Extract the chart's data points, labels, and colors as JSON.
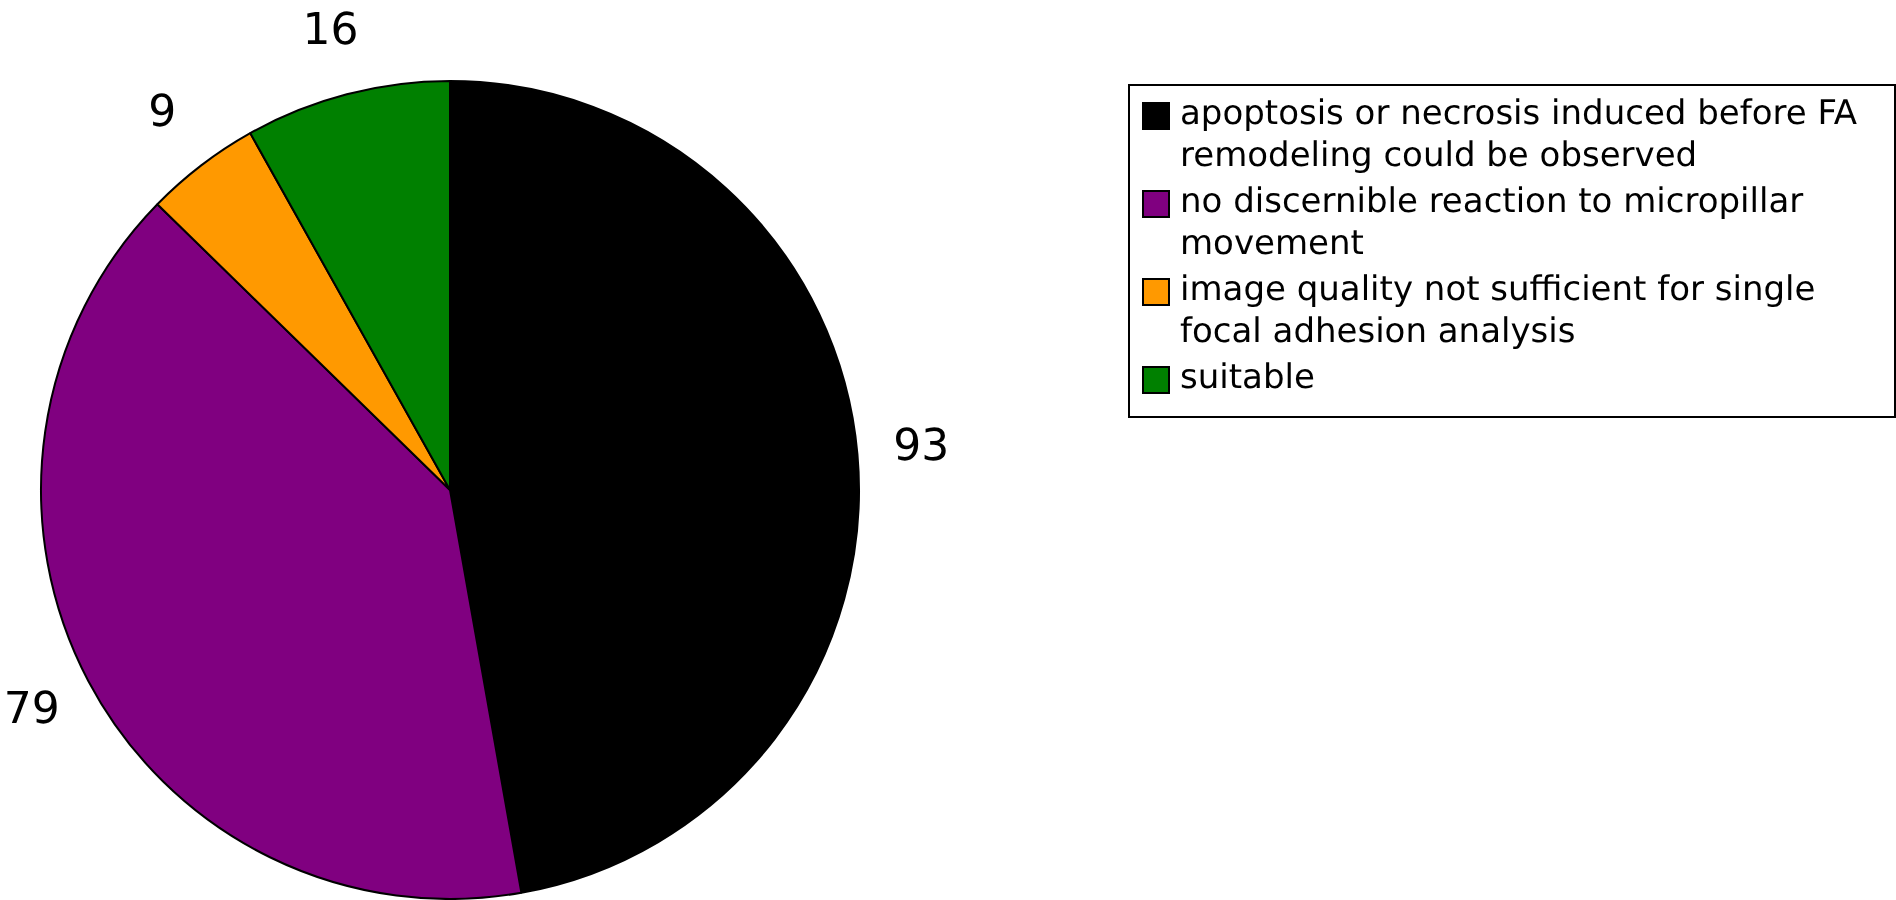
{
  "chart_data": {
    "type": "pie",
    "categories": [
      "apoptosis or necrosis induced before FA remodeling could be observed",
      "no discernible reaction to micropillar movement",
      "image quality not sufficient for single focal adhesion analysis",
      "suitable"
    ],
    "values": [
      93,
      79,
      9,
      16
    ],
    "colors": [
      "#000000",
      "#800080",
      "#ff9900",
      "#008000"
    ],
    "data_labels": true,
    "legend": "top right"
  }
}
